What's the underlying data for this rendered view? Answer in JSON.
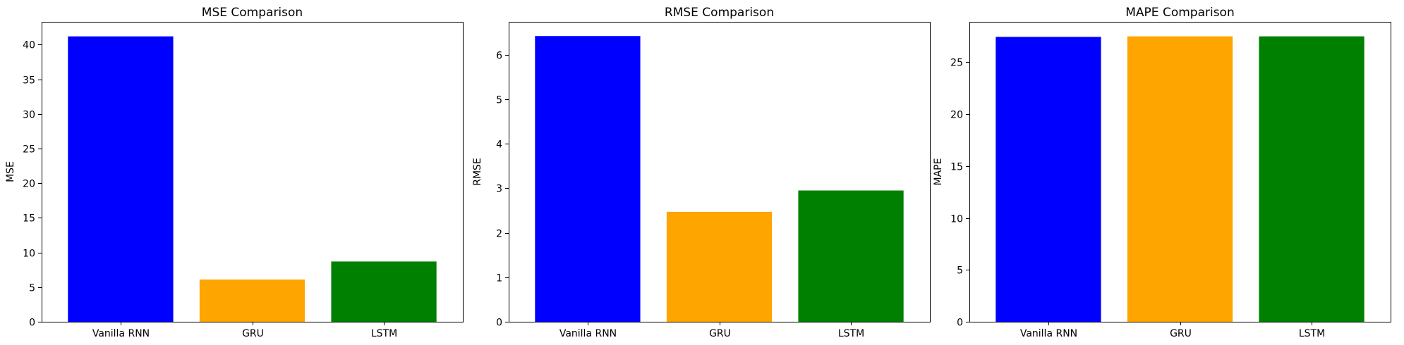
{
  "chart_data": [
    {
      "type": "bar",
      "title": "MSE Comparison",
      "xlabel": "",
      "ylabel": "MSE",
      "categories": [
        "Vanilla RNN",
        "GRU",
        "LSTM"
      ],
      "values": [
        41.2,
        6.1,
        8.7
      ],
      "colors": [
        "#0000ff",
        "#ffa500",
        "#008000"
      ],
      "ylim": [
        0,
        43.3
      ],
      "yticks": [
        0,
        5,
        10,
        15,
        20,
        25,
        30,
        35,
        40
      ],
      "grid": false
    },
    {
      "type": "bar",
      "title": "RMSE Comparison",
      "xlabel": "",
      "ylabel": "RMSE",
      "categories": [
        "Vanilla RNN",
        "GRU",
        "LSTM"
      ],
      "values": [
        6.42,
        2.47,
        2.95
      ],
      "colors": [
        "#0000ff",
        "#ffa500",
        "#008000"
      ],
      "ylim": [
        0,
        6.74
      ],
      "yticks": [
        0,
        1,
        2,
        3,
        4,
        5,
        6
      ],
      "grid": false
    },
    {
      "type": "bar",
      "title": "MAPE Comparison",
      "xlabel": "",
      "ylabel": "MAPE",
      "categories": [
        "Vanilla RNN",
        "GRU",
        "LSTM"
      ],
      "values": [
        27.45,
        27.5,
        27.5
      ],
      "colors": [
        "#0000ff",
        "#ffa500",
        "#008000"
      ],
      "ylim": [
        0,
        28.9
      ],
      "yticks": [
        0,
        5,
        10,
        15,
        20,
        25
      ],
      "grid": false
    }
  ]
}
